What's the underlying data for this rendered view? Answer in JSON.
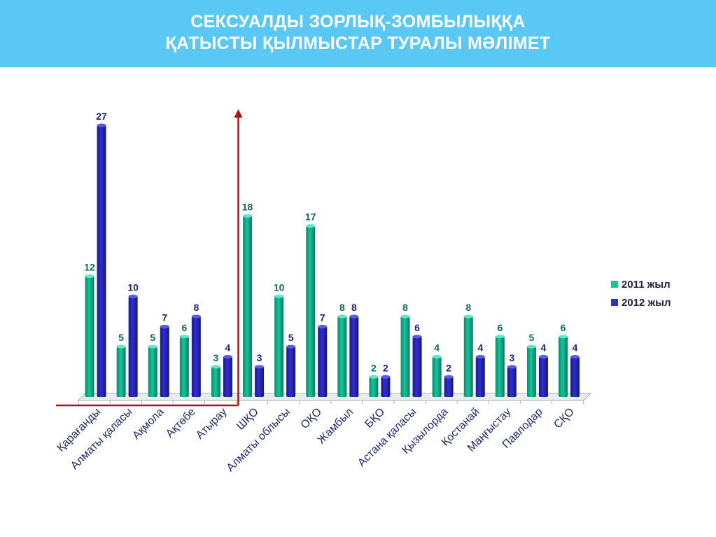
{
  "slide": {
    "title_line1": "СЕКСУАЛДЫ ЗОРЛЫҚ-ЗОМБЫЛЫҚҚА",
    "title_line2": "ҚАТЫСТЫ ҚЫЛМЫСТАР ТУРАЛЫ МӘЛІМЕТ"
  },
  "colors": {
    "title_bg": "#5ac8f5",
    "series_2011": "#16c39a",
    "series_2012": "#2e2fd0",
    "highlight_line": "#b01010",
    "label_2011": "#0e6b5a",
    "label_2012": "#1a1f80"
  },
  "chart_data": {
    "type": "bar",
    "categories": [
      "Қарағанды",
      "Алматы қаласы",
      "Ақмола",
      "Ақтөбе",
      "Атырау",
      "ШҚО",
      "Алматы облысы",
      "ОҚО",
      "Жамбыл",
      "БҚО",
      "Астана қаласы",
      "Қызылорда",
      "Қостанай",
      "Маңғыстау",
      "Павлодар",
      "СҚО"
    ],
    "series": [
      {
        "name": "2011 жыл",
        "values": [
          12,
          5,
          5,
          6,
          3,
          18,
          10,
          17,
          8,
          2,
          8,
          4,
          8,
          6,
          5,
          6
        ]
      },
      {
        "name": "2012 жыл",
        "values": [
          27,
          10,
          7,
          8,
          4,
          3,
          5,
          7,
          8,
          2,
          6,
          2,
          4,
          3,
          4,
          4
        ]
      }
    ],
    "ylim": [
      0,
      27
    ],
    "legend_position": "right",
    "grid": false,
    "highlight": {
      "from_category": 0,
      "to_category": 4,
      "style": "red bracket with upward arrow"
    }
  }
}
